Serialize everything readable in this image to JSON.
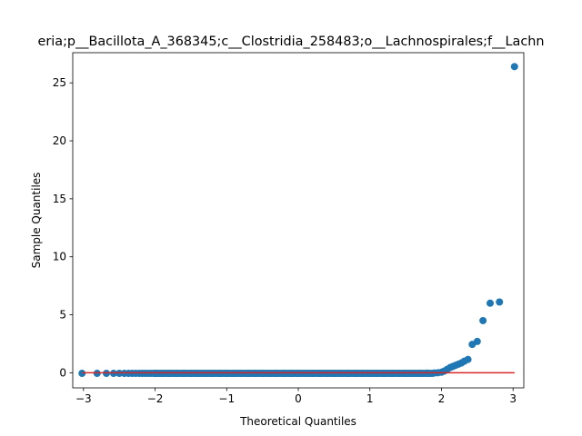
{
  "chart_data": {
    "type": "scatter",
    "title": "eria;p__Bacillota_A_368345;c__Clostridia_258483;o__Lachnospirales;f__Lachn",
    "xlabel": "Theoretical Quantiles",
    "ylabel": "Sample Quantiles",
    "xlim": [
      -3.15,
      3.15
    ],
    "ylim": [
      -1.3,
      27.6
    ],
    "xticks": [
      -3,
      -2,
      -1,
      0,
      1,
      2,
      3
    ],
    "yticks": [
      0,
      5,
      10,
      15,
      20,
      25
    ],
    "grid": false,
    "legend": "none",
    "colors": {
      "points": "#1f77b4",
      "reference_line": "#d62728",
      "axes": "#000000"
    },
    "reference_line": {
      "x": [
        -3.02,
        3.02
      ],
      "y": [
        0,
        0
      ]
    },
    "series": [
      {
        "x": [
          -3.02,
          -2.81,
          -2.68,
          -2.58,
          -2.5,
          -2.43,
          -2.37,
          -2.32,
          -2.27,
          -2.22,
          -2.18,
          -2.14,
          -2.1,
          -2.06,
          -2.02,
          -1.98,
          -1.9,
          -1.8,
          -1.7,
          -1.6,
          -1.5,
          -1.4,
          -1.3,
          -1.2,
          -1.1,
          -1.0,
          -0.9,
          -0.8,
          -0.7,
          -0.6,
          -0.5,
          -0.4,
          -0.3,
          -0.2,
          -0.1,
          0.0,
          0.1,
          0.2,
          0.3,
          0.4,
          0.5,
          0.6,
          0.7,
          0.8,
          0.9,
          1.0,
          1.1,
          1.2,
          1.3,
          1.4,
          1.5,
          1.6,
          1.7,
          1.8,
          1.9,
          1.95,
          2.0,
          2.04,
          2.08,
          2.12,
          2.16,
          2.2,
          2.24,
          2.28,
          2.32,
          2.37,
          2.43,
          2.5,
          2.58,
          2.68,
          2.81,
          3.02
        ],
        "y": [
          -0.05,
          -0.05,
          -0.05,
          -0.05,
          -0.05,
          -0.05,
          -0.05,
          -0.05,
          -0.05,
          -0.05,
          -0.05,
          -0.05,
          -0.05,
          -0.05,
          -0.05,
          -0.05,
          -0.05,
          -0.05,
          -0.05,
          -0.05,
          -0.05,
          -0.05,
          -0.05,
          -0.05,
          -0.05,
          -0.05,
          -0.05,
          -0.05,
          -0.05,
          -0.05,
          -0.05,
          -0.05,
          -0.05,
          -0.05,
          -0.05,
          -0.05,
          -0.05,
          -0.05,
          -0.05,
          -0.05,
          -0.05,
          -0.05,
          -0.05,
          -0.05,
          -0.05,
          -0.05,
          -0.05,
          -0.05,
          -0.05,
          -0.05,
          -0.05,
          -0.05,
          -0.04,
          -0.03,
          -0.02,
          0.0,
          0.05,
          0.15,
          0.3,
          0.45,
          0.55,
          0.65,
          0.75,
          0.85,
          1.0,
          1.15,
          2.45,
          2.7,
          4.5,
          6.0,
          6.1,
          26.4
        ]
      }
    ]
  }
}
